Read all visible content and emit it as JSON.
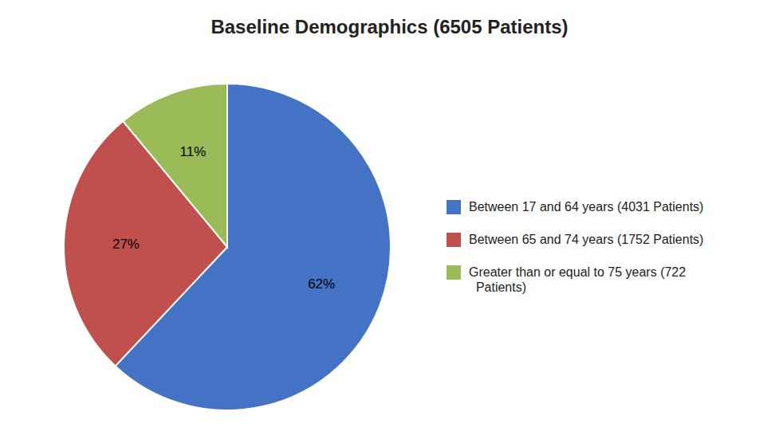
{
  "chart_data": {
    "type": "pie",
    "title": "Baseline Demographics (6505 Patients)",
    "categories": [
      "Between 17 and 64 years (4031 Patients)",
      "Between 65 and 74 years (1752 Patients)",
      "Greater than or equal to 75 years (722\n  Patients)"
    ],
    "values": [
      62,
      27,
      11
    ],
    "value_labels": [
      "62%",
      "27%",
      "11%"
    ],
    "colors": [
      "#4472C4",
      "#C0504D",
      "#9BBB59"
    ],
    "data_labels": true,
    "legend": "right"
  }
}
